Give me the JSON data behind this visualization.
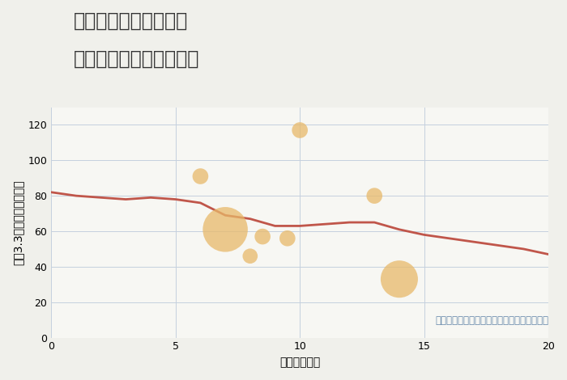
{
  "title_line1": "愛知県豊川市山道町の",
  "title_line2": "駅距離別中古戸建て価格",
  "xlabel": "駅距離（分）",
  "ylabel": "坪（3.3㎡）単価（万円）",
  "background_color": "#f0f0eb",
  "plot_bg_color": "#f7f7f3",
  "line_x": [
    0,
    1,
    2,
    3,
    4,
    5,
    6,
    7,
    8,
    9,
    10,
    11,
    12,
    13,
    14,
    15,
    16,
    17,
    18,
    19,
    20
  ],
  "line_y": [
    82,
    80,
    79,
    78,
    79,
    78,
    76,
    69,
    67,
    63,
    63,
    64,
    65,
    65,
    61,
    58,
    56,
    54,
    52,
    50,
    47
  ],
  "scatter_x": [
    6,
    7,
    8,
    8.5,
    10,
    9.5,
    13,
    14
  ],
  "scatter_y": [
    91,
    61,
    46,
    57,
    117,
    56,
    80,
    33
  ],
  "scatter_sizes": [
    200,
    1600,
    180,
    200,
    200,
    200,
    200,
    1100
  ],
  "scatter_color": "#e8b96a",
  "scatter_alpha": 0.75,
  "line_color": "#c0564a",
  "line_width": 2.0,
  "xlim": [
    0,
    20
  ],
  "ylim": [
    0,
    130
  ],
  "yticks": [
    0,
    20,
    40,
    60,
    80,
    100,
    120
  ],
  "xticks": [
    0,
    5,
    10,
    15,
    20
  ],
  "grid_color": "#c5d0de",
  "annotation": "円の大きさは、取引のあった物件面積を示す",
  "annotation_color": "#6688aa",
  "annotation_fontsize": 8.5,
  "title_fontsize": 17,
  "axis_label_fontsize": 10,
  "tick_fontsize": 9
}
